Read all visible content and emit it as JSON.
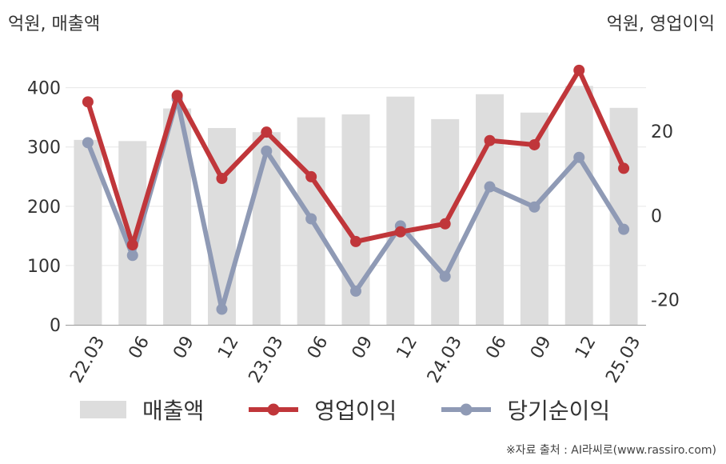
{
  "chart_data": {
    "type": "bar",
    "left_axis_unit": "억원, 매출액",
    "right_axis_unit": "억원, 영업이익",
    "categories": [
      "22.03",
      "06",
      "09",
      "12",
      "23.03",
      "06",
      "09",
      "12",
      "24.03",
      "06",
      "09",
      "12",
      "25.03"
    ],
    "left_ylim": [
      0,
      440
    ],
    "left_ticks": [
      "0",
      "100",
      "200",
      "300",
      "400"
    ],
    "right_ylim": [
      -26.0,
      36.0
    ],
    "right_ticks": [
      "-20",
      "0",
      "20"
    ],
    "series": [
      {
        "name": "매출액",
        "type": "bar",
        "axis": "left",
        "color": "#dddddd",
        "values": [
          312,
          310,
          365,
          332,
          325,
          350,
          355,
          385,
          347,
          389,
          358,
          403,
          366
        ]
      },
      {
        "name": "영업이익",
        "type": "line",
        "axis": "right",
        "color": "#c0363a",
        "values": [
          27.0,
          -7.0,
          28.5,
          8.8,
          19.8,
          9.2,
          -6.2,
          -3.9,
          -2.0,
          17.8,
          16.8,
          34.5,
          11.2
        ]
      },
      {
        "name": "당기순이익",
        "type": "line",
        "axis": "right",
        "color": "#8f9ab5",
        "values": [
          17.3,
          -9.5,
          27.8,
          -22.3,
          15.3,
          -0.8,
          -18.0,
          -2.5,
          -14.5,
          6.8,
          2.0,
          13.8,
          -3.3
        ]
      }
    ],
    "legend_position": "bottom",
    "grid": true
  },
  "source": "※자료 출처 : AI라씨로(www.rassiro.com)"
}
